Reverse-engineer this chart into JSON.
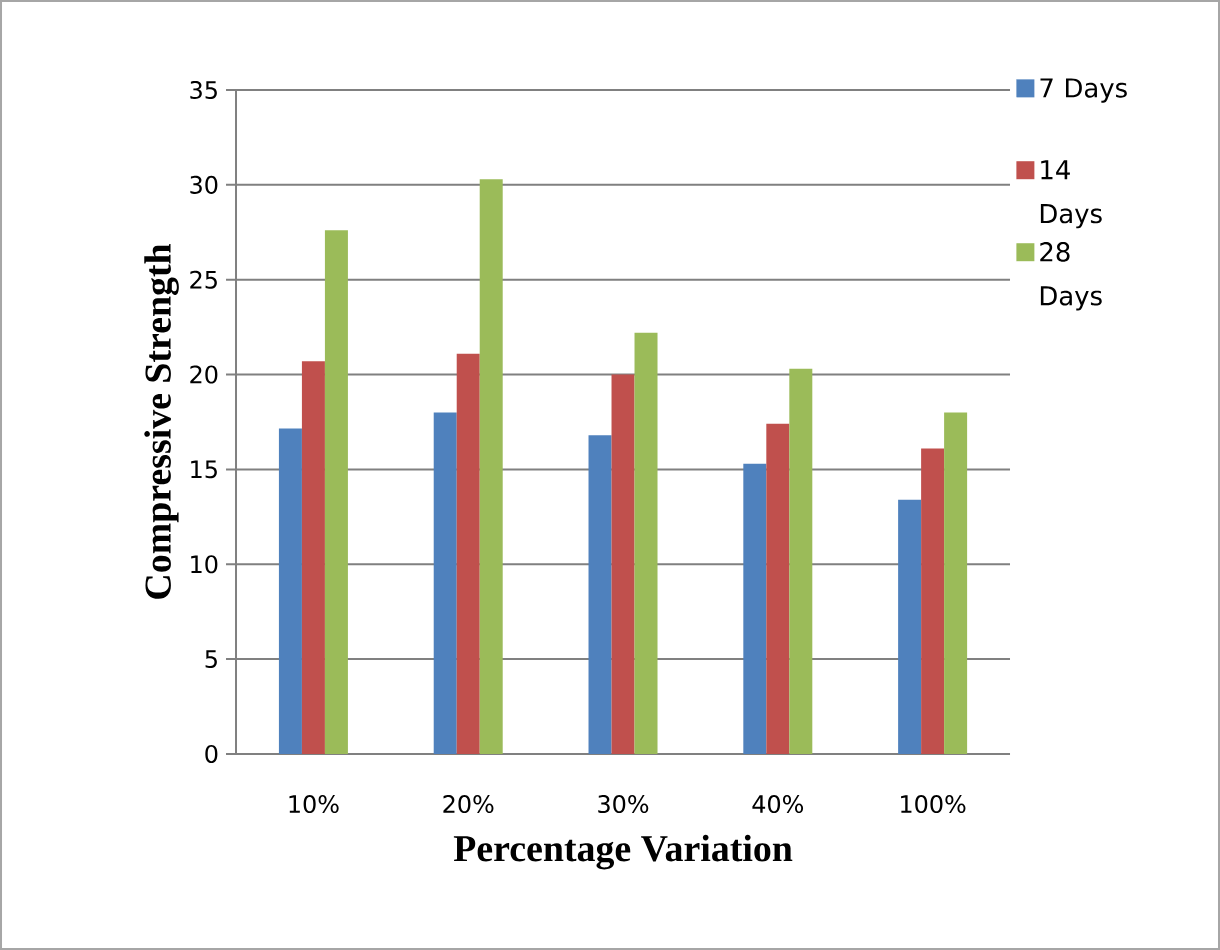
{
  "chart_data": {
    "type": "bar",
    "xlabel": "Percentage Variation",
    "ylabel": "Compressive Strength",
    "categories": [
      "10%",
      "20%",
      "30%",
      "40%",
      "100%"
    ],
    "series": [
      {
        "name": "7 Days",
        "color": "#4f81bd",
        "values": [
          17.15,
          18.0,
          16.8,
          15.3,
          13.4
        ]
      },
      {
        "name": "14 Days",
        "color": "#c0504d",
        "values": [
          20.7,
          21.1,
          20.0,
          17.4,
          16.1
        ]
      },
      {
        "name": "28 Days",
        "color": "#9bbb59",
        "values": [
          27.6,
          30.3,
          22.2,
          20.3,
          18.0
        ]
      }
    ],
    "ylim": [
      0,
      35
    ],
    "yticks": [
      0,
      5,
      10,
      15,
      20,
      25,
      30,
      35
    ],
    "grid": "y",
    "legend": "top right"
  }
}
